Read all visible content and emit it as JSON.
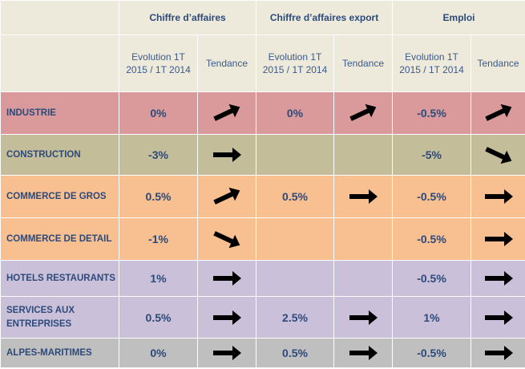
{
  "header": {
    "groups": [
      "Chiffre d’affaires",
      "Chiffre d’affaires export",
      "Emploi"
    ],
    "evolution_label": "Evolution 1T 2015 / 1T 2014",
    "tendance_label": "Tendance"
  },
  "colors": {
    "header_bg": "#eeeadb",
    "header_text": "#2c4a7a",
    "industrie": "#da9a9b",
    "construction": "#c4bd99",
    "commerce": "#f8bf91",
    "hotels_services": "#cbc0da",
    "alpes_maritimes": "#bfbfbf"
  },
  "trend_legend": {
    "up": "up-arrow-icon",
    "flat": "right-arrow-icon",
    "down": "down-arrow-icon"
  },
  "rows": [
    {
      "label": "INDUSTRIE",
      "ca": "0%",
      "ca_trend": "up",
      "export": "0%",
      "export_trend": "up",
      "emploi": "-0.5%",
      "emploi_trend": "up"
    },
    {
      "label": "CONSTRUCTION",
      "ca": "-3%",
      "ca_trend": "flat",
      "export": "",
      "export_trend": "",
      "emploi": "-5%",
      "emploi_trend": "down"
    },
    {
      "label": "COMMERCE DE GROS",
      "ca": "0.5%",
      "ca_trend": "up",
      "export": "0.5%",
      "export_trend": "flat",
      "emploi": "-0.5%",
      "emploi_trend": "flat"
    },
    {
      "label": "COMMERCE DE DETAIL",
      "ca": "-1%",
      "ca_trend": "down",
      "export": "",
      "export_trend": "",
      "emploi": "-0.5%",
      "emploi_trend": "flat"
    },
    {
      "label": "HOTELS RESTAURANTS",
      "ca": "1%",
      "ca_trend": "flat",
      "export": "",
      "export_trend": "",
      "emploi": "-0.5%",
      "emploi_trend": "flat"
    },
    {
      "label": "SERVICES AUX ENTREPRISES",
      "ca": "0.5%",
      "ca_trend": "flat",
      "export": "2.5%",
      "export_trend": "flat",
      "emploi": "1%",
      "emploi_trend": "flat"
    },
    {
      "label": "ALPES-MARITIMES",
      "ca": "0%",
      "ca_trend": "flat",
      "export": "0.5%",
      "export_trend": "flat",
      "emploi": "-0.5%",
      "emploi_trend": "flat"
    }
  ]
}
